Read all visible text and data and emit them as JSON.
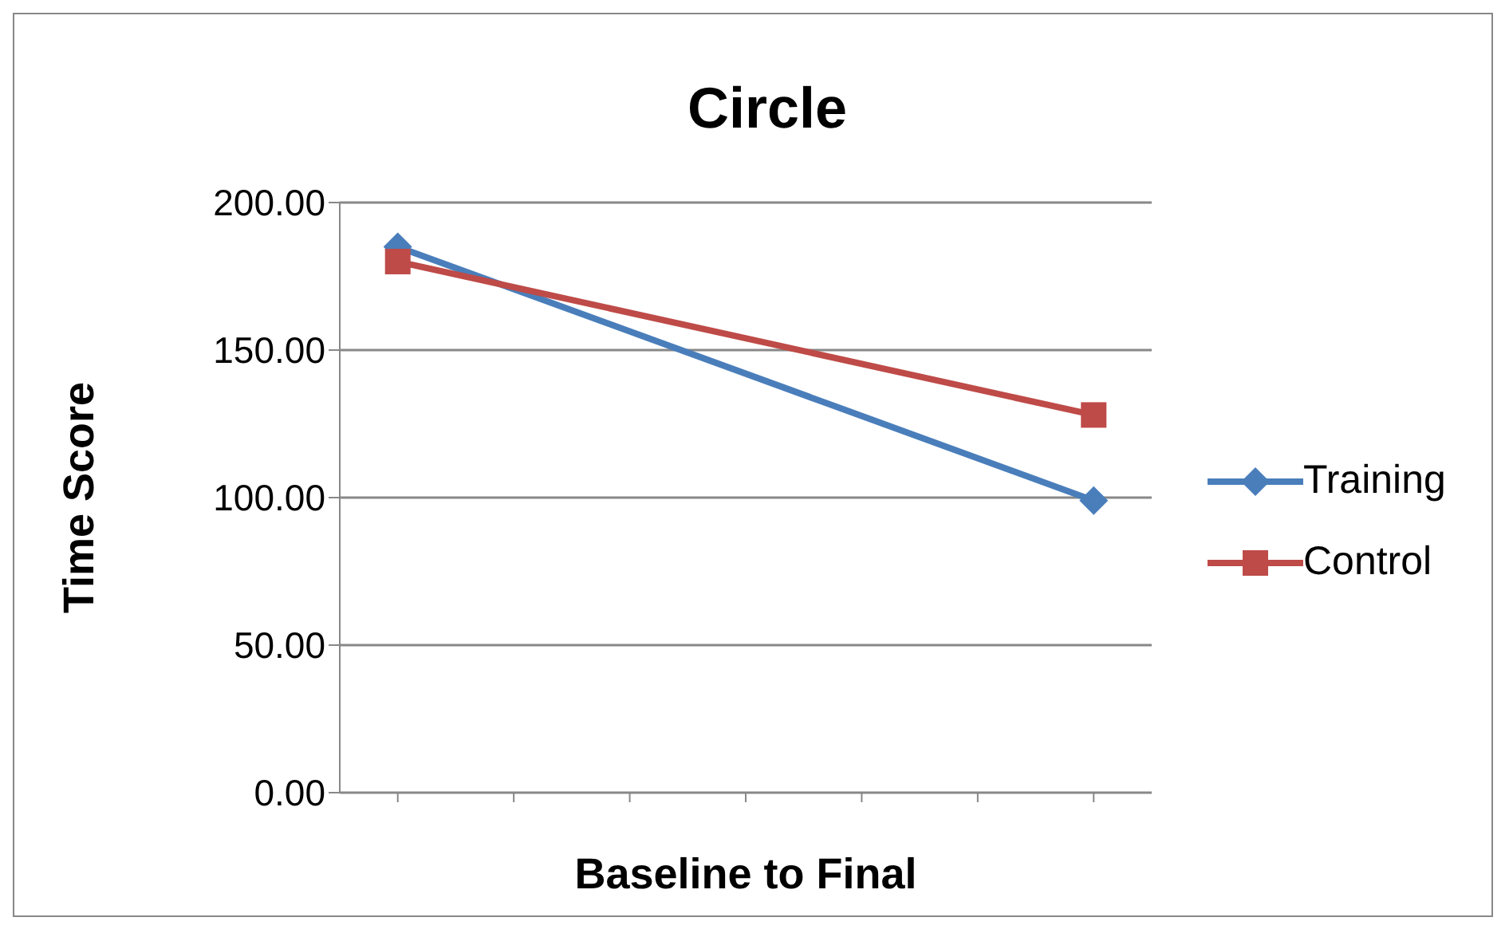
{
  "chart_data": {
    "type": "line",
    "title": "Circle",
    "xlabel": "Baseline to Final",
    "ylabel": "Time Score",
    "categories": [
      null,
      null,
      null,
      null,
      null,
      null,
      null
    ],
    "ylim": [
      0,
      200
    ],
    "yticks": [
      {
        "value": 0,
        "label": "0.00"
      },
      {
        "value": 50,
        "label": "50.00"
      },
      {
        "value": 100,
        "label": "100.00"
      },
      {
        "value": 150,
        "label": "150.00"
      },
      {
        "value": 200,
        "label": "200.00"
      }
    ],
    "grid": "y",
    "legend": "right",
    "line_style": "solid",
    "series": [
      {
        "name": "Training",
        "color": "#4a7ebb",
        "marker": "diamond",
        "values": [
          185,
          null,
          null,
          null,
          null,
          null,
          99
        ]
      },
      {
        "name": "Control",
        "color": "#be4b48",
        "marker": "square",
        "values": [
          180,
          null,
          null,
          null,
          null,
          null,
          128
        ]
      }
    ]
  }
}
